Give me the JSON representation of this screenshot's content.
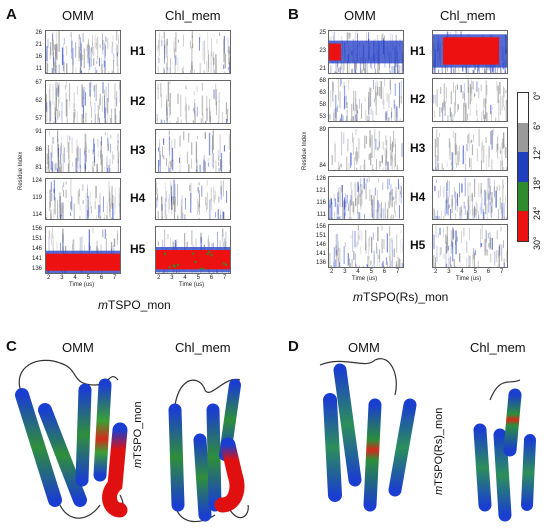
{
  "panels": {
    "A": {
      "letter": "A",
      "col1": "OMM",
      "col2": "Chl_mem",
      "caption_prefix": "m",
      "caption_rest": "TSPO_mon",
      "helices": [
        {
          "label": "H1",
          "ticks": [
            "26",
            "21",
            "16",
            "11"
          ]
        },
        {
          "label": "H2",
          "ticks": [
            "67",
            "62",
            "57"
          ]
        },
        {
          "label": "H3",
          "ticks": [
            "91",
            "86",
            "81"
          ]
        },
        {
          "label": "H4",
          "ticks": [
            "124",
            "119",
            "114"
          ]
        },
        {
          "label": "H5",
          "ticks": [
            "156",
            "151",
            "146",
            "141",
            "136"
          ]
        }
      ],
      "ylabel": "Residue Index",
      "xlabel": "Time (us)",
      "xticks": [
        "2",
        "3",
        "4",
        "5",
        "6",
        "7"
      ]
    },
    "B": {
      "letter": "B",
      "col1": "OMM",
      "col2": "Chl_mem",
      "caption_prefix": "m",
      "caption_rest": "TSPO(Rs)_mon",
      "helices": [
        {
          "label": "H1",
          "ticks": [
            "25",
            "23",
            "21"
          ]
        },
        {
          "label": "H2",
          "ticks": [
            "68",
            "63",
            "58",
            "53"
          ]
        },
        {
          "label": "H3",
          "ticks": [
            "89",
            "84"
          ]
        },
        {
          "label": "H4",
          "ticks": [
            "126",
            "121",
            "116",
            "111"
          ]
        },
        {
          "label": "H5",
          "ticks": [
            "156",
            "151",
            "146",
            "141",
            "136"
          ]
        }
      ],
      "ylabel": "Residue Index",
      "xlabel": "Time (us)",
      "xticks": [
        "2",
        "3",
        "4",
        "5",
        "6",
        "7"
      ]
    },
    "C": {
      "letter": "C",
      "col1": "OMM",
      "col2": "Chl_mem",
      "vlabel_prefix": "m",
      "vlabel_rest": "TSPO_mon"
    },
    "D": {
      "letter": "D",
      "col1": "OMM",
      "col2": "Chl_mem",
      "vlabel_prefix": "m",
      "vlabel_rest": "TSPO(Rs)_mon"
    }
  },
  "colorbar": {
    "labels": [
      "0°",
      "6°",
      "12°",
      "18°",
      "24°",
      "30°"
    ],
    "colors": [
      "#ffffff",
      "#9a9a9a",
      "#1f3fbf",
      "#2e8b2e",
      "#ee1111"
    ]
  }
}
